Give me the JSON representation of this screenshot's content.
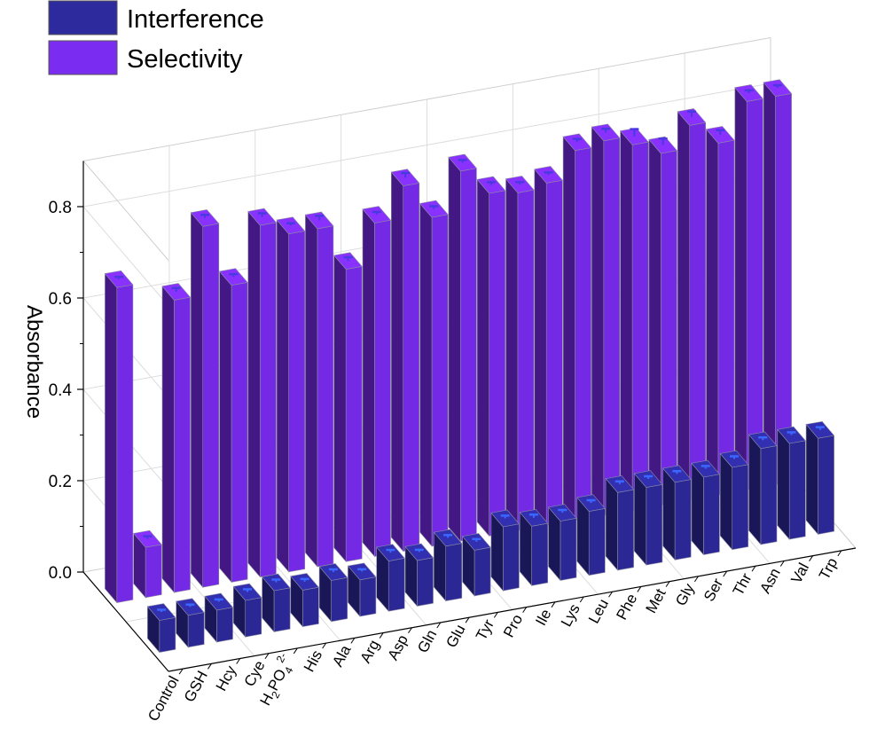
{
  "chart_data": {
    "type": "bar",
    "title": "",
    "xlabel": "",
    "ylabel": "Absorbance",
    "ylim": [
      0,
      0.9
    ],
    "yticks": [
      "0.0",
      "0.2",
      "0.4",
      "0.6",
      "0.8"
    ],
    "grid": true,
    "legend_position": "top-left",
    "categories": [
      "Control",
      "GSH",
      "Hcy",
      "Cye",
      "H2PO4 2-",
      "His",
      "Ala",
      "Arg",
      "Asp",
      "Gln",
      "Glu",
      "Tyr",
      "Pro",
      "Ile",
      "Lys",
      "Leu",
      "Phe",
      "Met",
      "Gly",
      "Ser",
      "Thr",
      "Asn",
      "Val",
      "Trp"
    ],
    "category_display": [
      {
        "text": "Control"
      },
      {
        "text": "GSH"
      },
      {
        "text": "Hcy"
      },
      {
        "text": "Cye"
      },
      {
        "text": "H",
        "sub1": "2",
        "mid": "PO",
        "sub2": "4",
        "sup": "2-"
      },
      {
        "text": "His"
      },
      {
        "text": "Ala"
      },
      {
        "text": "Arg"
      },
      {
        "text": "Asp"
      },
      {
        "text": "Gln"
      },
      {
        "text": "Glu"
      },
      {
        "text": "Tyr"
      },
      {
        "text": "Pro"
      },
      {
        "text": "Ile"
      },
      {
        "text": "Lys"
      },
      {
        "text": "Leu"
      },
      {
        "text": "Phe"
      },
      {
        "text": "Met"
      },
      {
        "text": "Gly"
      },
      {
        "text": "Ser"
      },
      {
        "text": "Thr"
      },
      {
        "text": "Asn"
      },
      {
        "text": "Val"
      },
      {
        "text": "Trp"
      }
    ],
    "series": [
      {
        "name": "Interference",
        "color": "#2d2a9e",
        "values": [
          0.07,
          0.07,
          0.07,
          0.08,
          0.09,
          0.08,
          0.09,
          0.08,
          0.11,
          0.1,
          0.12,
          0.1,
          0.14,
          0.13,
          0.13,
          0.14,
          0.17,
          0.17,
          0.17,
          0.17,
          0.18,
          0.21,
          0.21,
          0.21
        ],
        "errors": [
          0.005,
          0.005,
          0.005,
          0.006,
          0.006,
          0.006,
          0.006,
          0.005,
          0.006,
          0.005,
          0.006,
          0.006,
          0.006,
          0.007,
          0.006,
          0.006,
          0.006,
          0.006,
          0.006,
          0.006,
          0.006,
          0.006,
          0.006,
          0.006
        ]
      },
      {
        "name": "Selectivity",
        "color": "#7a2cf0",
        "values": [
          0.69,
          0.11,
          0.64,
          0.79,
          0.65,
          0.77,
          0.74,
          0.74,
          0.64,
          0.73,
          0.8,
          0.72,
          0.81,
          0.75,
          0.74,
          0.75,
          0.81,
          0.82,
          0.8,
          0.77,
          0.82,
          0.77,
          0.85,
          0.85
        ],
        "errors": [
          0.005,
          0.006,
          0.008,
          0.007,
          0.006,
          0.008,
          0.005,
          0.01,
          0.008,
          0.006,
          0.01,
          0.006,
          0.006,
          0.006,
          0.005,
          0.005,
          0.007,
          0.008,
          0.016,
          0.014,
          0.012,
          0.01,
          0.006,
          0.006
        ]
      }
    ]
  }
}
